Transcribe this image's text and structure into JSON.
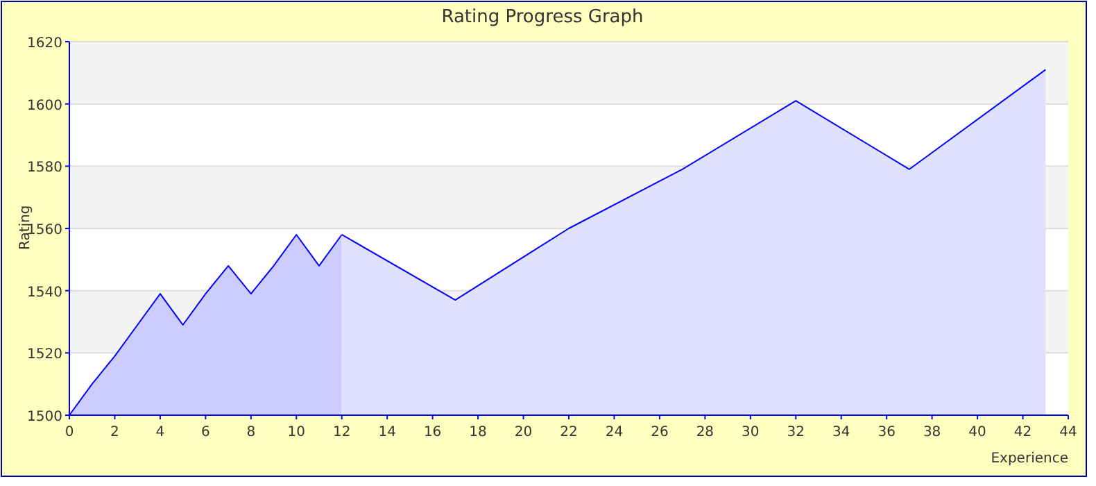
{
  "chart_data": {
    "type": "area",
    "title": "Rating Progress Graph",
    "xlabel": "Experience",
    "ylabel": "Rating",
    "xlim": [
      0,
      44
    ],
    "ylim": [
      1500,
      1620
    ],
    "xticks": [
      0,
      2,
      4,
      6,
      8,
      10,
      12,
      14,
      16,
      18,
      20,
      22,
      24,
      26,
      28,
      30,
      32,
      34,
      36,
      38,
      40,
      42,
      44
    ],
    "yticks": [
      1500,
      1520,
      1540,
      1560,
      1580,
      1600,
      1620
    ],
    "grid": "y",
    "series": [
      {
        "color": "#ccccff",
        "x": [
          0,
          1,
          2,
          3,
          4,
          5,
          6,
          7,
          8,
          9,
          10,
          11,
          12
        ],
        "values": [
          1500,
          1510,
          1519,
          1529,
          1539,
          1529,
          1539,
          1548,
          1539,
          1548,
          1558,
          1548,
          1558
        ]
      },
      {
        "color": "#e0e0ff",
        "x": [
          12,
          17,
          22,
          27,
          32,
          37,
          43
        ],
        "values": [
          1558,
          1537,
          1560,
          1579,
          1601,
          1579,
          1611
        ]
      }
    ]
  }
}
